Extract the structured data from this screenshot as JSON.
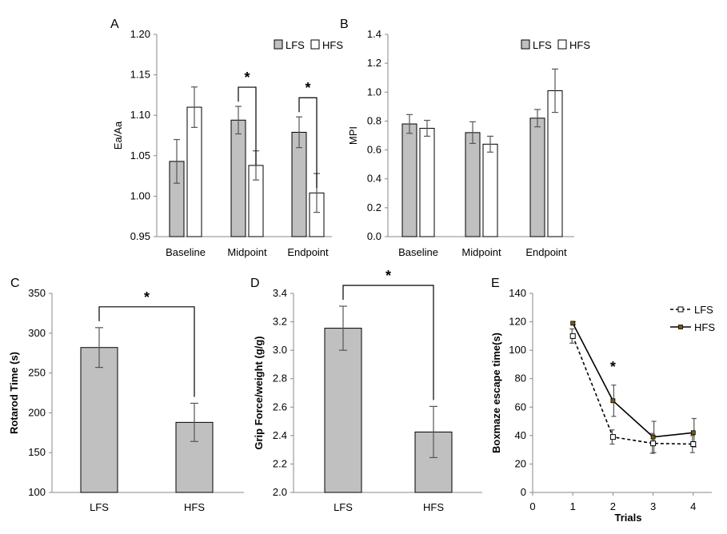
{
  "chart_data": [
    {
      "type": "bar",
      "panel_letter": "A",
      "ylabel": "Ea/Aa",
      "categories": [
        "Baseline",
        "Midpoint",
        "Endpoint"
      ],
      "ylim": [
        0.95,
        1.2
      ],
      "ytick_values": [
        0.95,
        1.0,
        1.05,
        1.1,
        1.15,
        1.2
      ],
      "ytick_labels": [
        "0.95",
        "1.00",
        "1.05",
        "1.10",
        "1.15",
        "1.20"
      ],
      "series": [
        {
          "name": "LFS",
          "color": "#c0c0c0",
          "values": [
            1.043,
            1.094,
            1.079
          ],
          "errors": [
            0.027,
            0.017,
            0.019
          ]
        },
        {
          "name": "HFS",
          "color": "#ffffff",
          "values": [
            1.11,
            1.038,
            1.004
          ],
          "errors": [
            0.025,
            0.018,
            0.024
          ]
        }
      ],
      "significance": [
        {
          "category_index": 1,
          "label": "*"
        },
        {
          "category_index": 2,
          "label": "*"
        }
      ],
      "legend_position": "top-right",
      "grid": false
    },
    {
      "type": "bar",
      "panel_letter": "B",
      "ylabel": "MPI",
      "categories": [
        "Baseline",
        "Midpoint",
        "Endpoint"
      ],
      "ylim": [
        0.0,
        1.4
      ],
      "ytick_values": [
        0.0,
        0.2,
        0.4,
        0.6,
        0.8,
        1.0,
        1.2,
        1.4
      ],
      "ytick_labels": [
        "0.0",
        "0.2",
        "0.4",
        "0.6",
        "0.8",
        "1.0",
        "1.2",
        "1.4"
      ],
      "series": [
        {
          "name": "LFS",
          "color": "#c0c0c0",
          "values": [
            0.78,
            0.72,
            0.82
          ],
          "errors": [
            0.065,
            0.075,
            0.06
          ]
        },
        {
          "name": "HFS",
          "color": "#ffffff",
          "values": [
            0.75,
            0.64,
            1.01
          ],
          "errors": [
            0.055,
            0.055,
            0.15
          ]
        }
      ],
      "legend_position": "top-right",
      "grid": false
    },
    {
      "type": "bar",
      "panel_letter": "C",
      "ylabel": "Rotarod Time (s)",
      "categories": [
        "LFS",
        "HFS"
      ],
      "ylim": [
        100,
        350
      ],
      "ytick_values": [
        100,
        150,
        200,
        250,
        300,
        350
      ],
      "ytick_labels": [
        "100",
        "150",
        "200",
        "250",
        "300",
        "350"
      ],
      "values": [
        282,
        188
      ],
      "errors": [
        25,
        24
      ],
      "color": "#c0c0c0",
      "significance": [
        {
          "between": [
            0,
            1
          ],
          "label": "*"
        }
      ],
      "grid": false
    },
    {
      "type": "bar",
      "panel_letter": "D",
      "ylabel": "Grip Force/weight (g/g)",
      "categories": [
        "LFS",
        "HFS"
      ],
      "ylim": [
        2.0,
        3.4
      ],
      "ytick_values": [
        2.0,
        2.2,
        2.4,
        2.6,
        2.8,
        3.0,
        3.2,
        3.4
      ],
      "ytick_labels": [
        "2.0",
        "2.2",
        "2.4",
        "2.6",
        "2.8",
        "3.0",
        "3.2",
        "3.4"
      ],
      "values": [
        3.155,
        2.425
      ],
      "errors": [
        0.155,
        0.18
      ],
      "color": "#c0c0c0",
      "significance": [
        {
          "between": [
            0,
            1
          ],
          "label": "*"
        }
      ],
      "grid": false
    },
    {
      "type": "line",
      "panel_letter": "E",
      "ylabel": "Boxmaze escape time(s)",
      "xlabel": "Trials",
      "xlim": [
        0,
        4.5
      ],
      "xtick_values": [
        0,
        1,
        2,
        3,
        4
      ],
      "xtick_labels": [
        "0",
        "1",
        "2",
        "3",
        "4"
      ],
      "ylim": [
        0,
        140
      ],
      "ytick_values": [
        0,
        20,
        40,
        60,
        80,
        100,
        120,
        140
      ],
      "ytick_labels": [
        "0",
        "20",
        "40",
        "60",
        "80",
        "100",
        "120",
        "140"
      ],
      "x": [
        1,
        2,
        3,
        4
      ],
      "series": [
        {
          "name": "LFS",
          "style": "dashed",
          "marker": "open-square",
          "values": [
            110,
            39,
            34.5,
            34
          ],
          "errors": [
            5,
            5,
            7,
            6
          ]
        },
        {
          "name": "HFS",
          "style": "solid",
          "marker": "filled-square",
          "values": [
            119,
            64.5,
            39,
            42
          ],
          "errors": [
            1,
            11,
            11,
            10
          ]
        }
      ],
      "significance": [
        {
          "x": 2,
          "label": "*"
        }
      ],
      "legend_position": "right",
      "grid": false
    }
  ]
}
